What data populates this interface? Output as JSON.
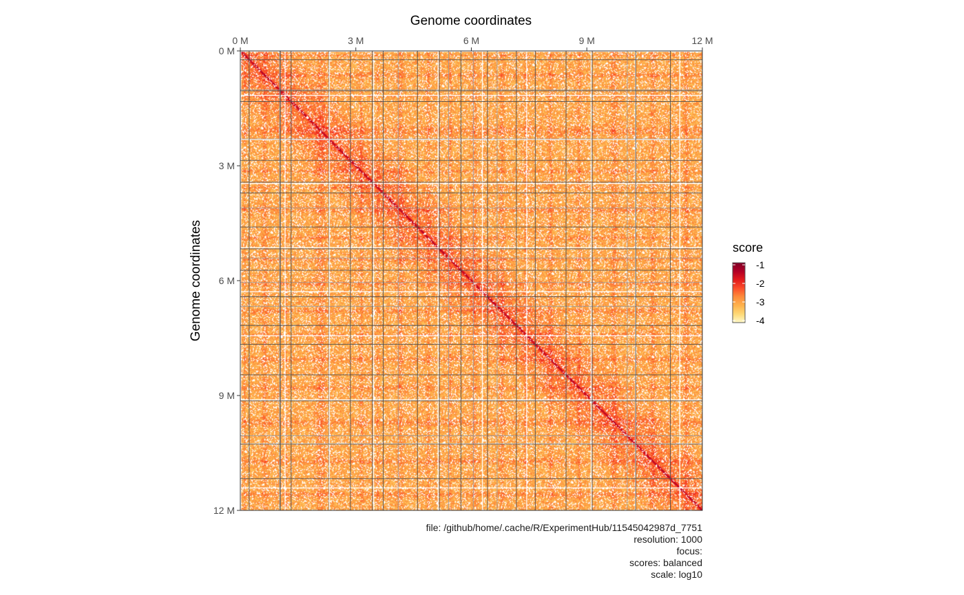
{
  "chart_data": {
    "type": "heatmap",
    "title": "",
    "xlabel": "Genome coordinates",
    "ylabel": "Genome coordinates",
    "x_axis_position": "top",
    "y_axis_reversed": true,
    "xlim": [
      0,
      12000000
    ],
    "ylim": [
      0,
      12000000
    ],
    "x_ticks": [
      {
        "value": 0,
        "label": "0 M"
      },
      {
        "value": 3000000,
        "label": "3 M"
      },
      {
        "value": 6000000,
        "label": "6 M"
      },
      {
        "value": 9000000,
        "label": "9 M"
      },
      {
        "value": 12000000,
        "label": "12 M"
      }
    ],
    "y_ticks": [
      {
        "value": 0,
        "label": "0 M"
      },
      {
        "value": 3000000,
        "label": "3 M"
      },
      {
        "value": 6000000,
        "label": "6 M"
      },
      {
        "value": 9000000,
        "label": "9 M"
      },
      {
        "value": 12000000,
        "label": "12 M"
      }
    ],
    "chromosome_boundaries": [
      230000,
      1040000,
      1320000,
      2860000,
      3430000,
      3710000,
      4600000,
      5170000,
      5730000,
      6420000,
      7170000,
      7660000,
      8460000,
      9140000,
      10270000,
      11170000
    ],
    "secondary_boundaries": [
      1020000,
      1040000,
      2300000,
      4100000,
      5410000,
      6050000,
      6670000,
      10050000
    ],
    "color_scale": {
      "name": "score",
      "scale": "log10",
      "domain": [
        -4,
        -1
      ],
      "colors": [
        "#fff9c8",
        "#fed976",
        "#feb24c",
        "#fd8d3c",
        "#fc4e2a",
        "#e31a1c",
        "#b10026",
        "#800026"
      ],
      "legend_ticks": [
        {
          "value": -1,
          "label": "-1"
        },
        {
          "value": -2,
          "label": "-2"
        },
        {
          "value": -3,
          "label": "-3"
        },
        {
          "value": -4,
          "label": "-4"
        }
      ],
      "legend_placement": "right"
    },
    "background_score_range": [
      -3.4,
      -2.6
    ],
    "diagonal_score": -1.6
  },
  "caption": {
    "lines": [
      "file: /github/home/.cache/R/ExperimentHub/11545042987d_7751",
      "resolution: 1000",
      "focus: ",
      "scores: balanced",
      "scale: log10"
    ]
  }
}
